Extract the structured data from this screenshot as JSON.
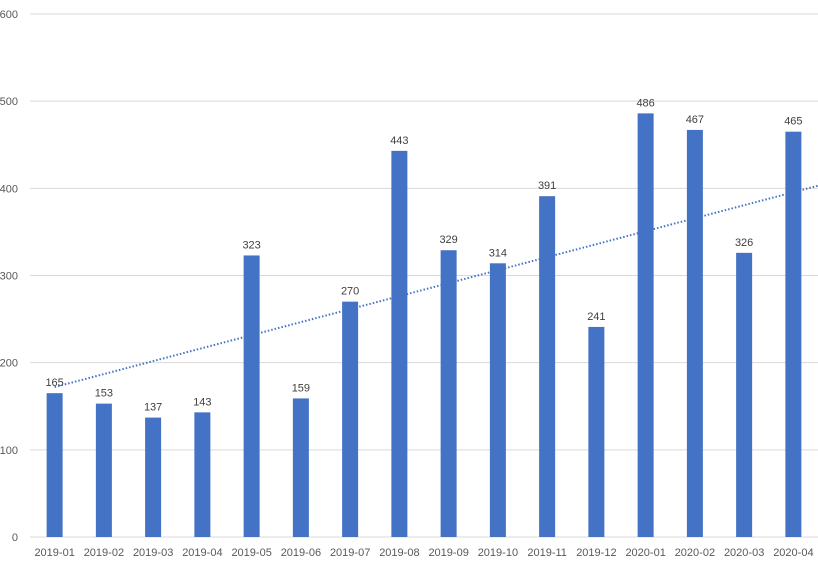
{
  "chart_data": {
    "type": "bar",
    "title": "",
    "xlabel": "",
    "ylabel": "",
    "categories": [
      "2019-01",
      "2019-02",
      "2019-03",
      "2019-04",
      "2019-05",
      "2019-06",
      "2019-07",
      "2019-08",
      "2019-09",
      "2019-10",
      "2019-11",
      "2019-12",
      "2020-01",
      "2020-02",
      "2020-03",
      "2020-04"
    ],
    "values": [
      165,
      153,
      137,
      143,
      323,
      159,
      270,
      443,
      329,
      314,
      391,
      241,
      486,
      467,
      326,
      465
    ],
    "data_labels": true,
    "ylim": [
      0,
      600
    ],
    "yticks": [
      0,
      100,
      200,
      300,
      400,
      500,
      600
    ],
    "grid": true,
    "legend": "none",
    "trendline": {
      "type": "linear",
      "style": "dotted",
      "start_value": 172,
      "end_value": 403
    },
    "bar_color": "#4472C4",
    "trend_color": "#4472C4",
    "grid_color": "#D9D9D9"
  }
}
